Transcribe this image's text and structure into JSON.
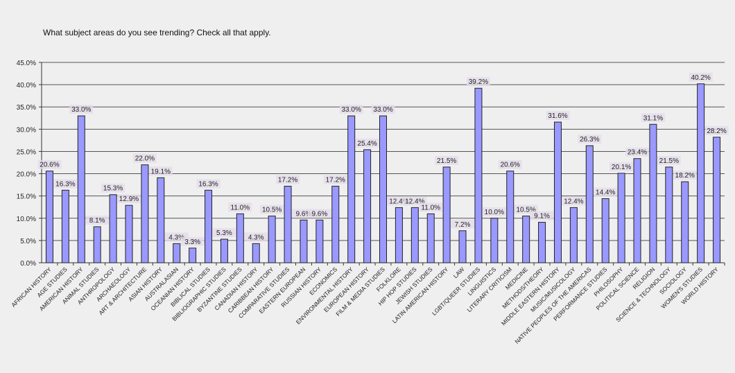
{
  "chart_data": {
    "type": "bar",
    "title": "What subject areas do you see trending? Check all that apply.",
    "xlabel": "",
    "ylabel": "",
    "ylim": [
      0,
      45
    ],
    "yticks": [
      "0.0%",
      "5.0%",
      "10.0%",
      "15.0%",
      "20.0%",
      "25.0%",
      "30.0%",
      "35.0%",
      "40.0%",
      "45.0%"
    ],
    "grid": true,
    "bar_color": "#9999ff",
    "label_bg": "#e4dcea",
    "categories": [
      "AFRICAN HISTORY",
      "AGE STUDIES",
      "AMERICAN HISTORY",
      "ANIMAL STUDIES",
      "ANTHROPOLOGY",
      "ARCHAEOLOGY",
      "ART & ARCHITECTURE",
      "ASIAN HISTORY",
      "AUSTRALASIAN",
      "OCEANIAN HISTORY",
      "BIBLICAL STUDIES",
      "BIBLIOGRAPHIC STUDIES",
      "BYZANTINE STUDIES",
      "CANADIAN HISTORY",
      "CARIBBEAN HISTORY",
      "COMPARATIVE STUDIES",
      "EASTERN EUROPEAN",
      "RUSSIAN HISTORY",
      "ECONOMICS",
      "ENVIRONMENTAL HISTORY",
      "EUROPEAN HISTORY",
      "FILM & MEDIA STUDIES",
      "FOLKLORE",
      "HIP HOP STUDIES",
      "JEWISH STUDIES",
      "LATIN AMERICAN HISTORY",
      "LAW",
      "LGBT/QUEER STUDIES",
      "LINGUISTICS",
      "LITERARY CRITICISM",
      "MEDICINE",
      "METHODS/THEORY",
      "MIDDLE EASTERN HISTORY",
      "MUSIC/MUSICOLOGY",
      "NATIVE PEOPLES OF THE AMERICAS",
      "PERFORMANCE STUDIES",
      "PHILOSOPHY",
      "POLITICAL SCIENCE",
      "RELIGION",
      "SCIENCE & TECHNOLOGY",
      "SOCIOLOGY",
      "WOMEN'S STUDIES",
      "WORLD HISTORY"
    ],
    "values": [
      20.6,
      16.3,
      33.0,
      8.1,
      15.3,
      12.9,
      22.0,
      19.1,
      4.3,
      3.3,
      16.3,
      5.3,
      11.0,
      4.3,
      10.5,
      17.2,
      9.6,
      9.6,
      17.2,
      33.0,
      25.4,
      33.0,
      12.4,
      12.4,
      11.0,
      21.5,
      7.2,
      39.2,
      10.0,
      20.6,
      10.5,
      9.1,
      31.6,
      12.4,
      26.3,
      14.4,
      20.1,
      23.4,
      31.1,
      21.5,
      18.2,
      40.2,
      28.2
    ]
  }
}
